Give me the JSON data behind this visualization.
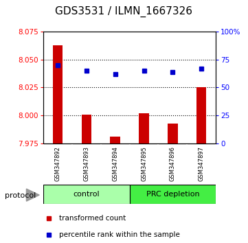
{
  "title": "GDS3531 / ILMN_1667326",
  "samples": [
    "GSM347892",
    "GSM347893",
    "GSM347894",
    "GSM347895",
    "GSM347896",
    "GSM347897"
  ],
  "bar_values": [
    8.063,
    8.001,
    7.981,
    8.002,
    7.993,
    8.025
  ],
  "bar_baseline": 7.975,
  "percentile_values": [
    70,
    65,
    62,
    65,
    64,
    67
  ],
  "left_ylim": [
    7.975,
    8.075
  ],
  "right_ylim": [
    0,
    100
  ],
  "left_yticks": [
    7.975,
    8.0,
    8.025,
    8.05,
    8.075
  ],
  "right_yticks": [
    0,
    25,
    50,
    75,
    100
  ],
  "right_yticklabels": [
    "0",
    "25",
    "50",
    "75",
    "100%"
  ],
  "bar_color": "#cc0000",
  "dot_color": "#0000cc",
  "control_color": "#aaffaa",
  "prc_color": "#44ee44",
  "protocol_label": "protocol",
  "legend_bar_label": "transformed count",
  "legend_dot_label": "percentile rank within the sample",
  "axis_area_bg": "#ffffff",
  "title_fontsize": 11,
  "tick_fontsize": 7.5,
  "sample_fontsize": 6,
  "group_fontsize": 8,
  "legend_fontsize": 7.5
}
